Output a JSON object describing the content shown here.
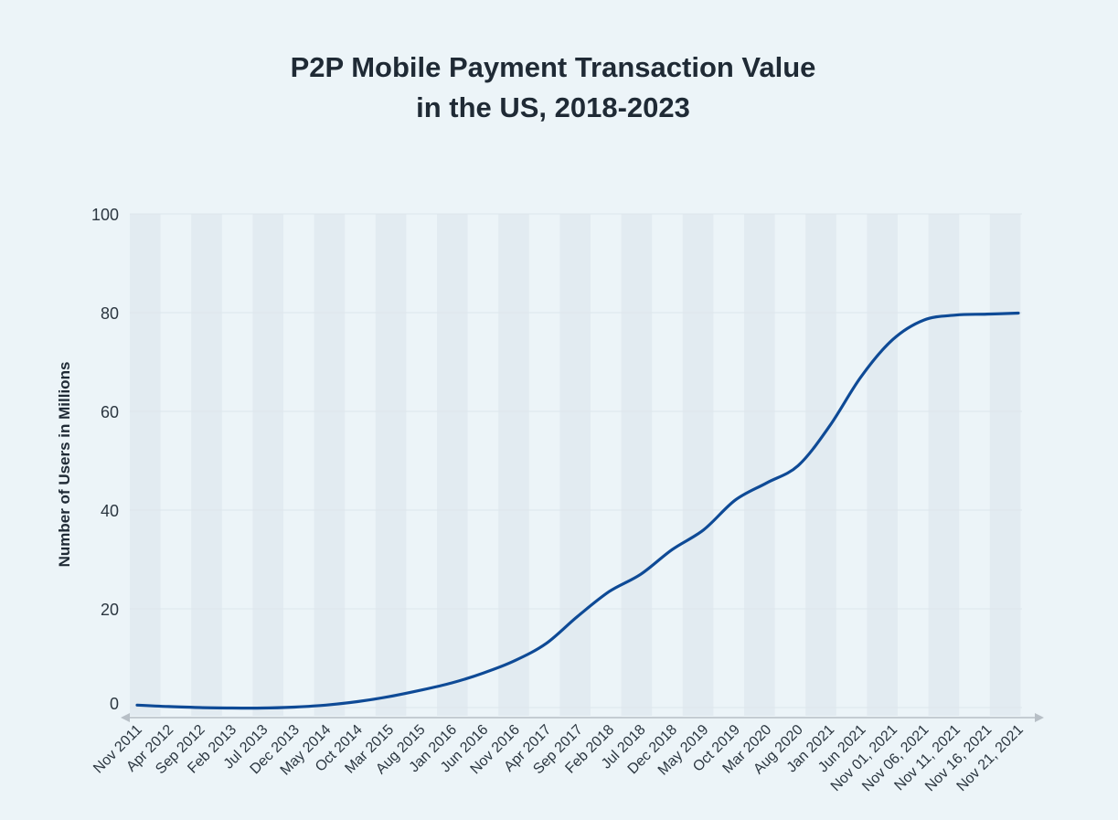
{
  "chart_data": {
    "type": "line",
    "title": [
      "P2P Mobile Payment Transaction Value",
      "in the US, 2018-2023"
    ],
    "xlabel": "",
    "ylabel": "Number of Users in Millions",
    "ylim": [
      0,
      100
    ],
    "yticks": [
      0,
      20,
      40,
      60,
      80,
      100
    ],
    "grid": true,
    "legend": "none",
    "colors": {
      "line": "#0e4a96",
      "band": "#e2ebf1",
      "grid": "#dde6ec",
      "axis": "#b7bfc6",
      "background": "#ecf4f8"
    },
    "categories": [
      "Nov 2011",
      "Apr 2012",
      "Sep 2012",
      "Feb 2013",
      "Jul 2013",
      "Dec 2013",
      "May 2014",
      "Oct 2014",
      "Mar 2015",
      "Aug 2015",
      "Jan 2016",
      "Jun 2016",
      "Nov 2016",
      "Apr 2017",
      "Sep 2017",
      "Feb 2018",
      "Jul 2018",
      "Dec 2018",
      "May 2019",
      "Oct 2019",
      "Mar 2020",
      "Aug 2020",
      "Jan 2021",
      "Jun 2021",
      "Nov 01, 2021",
      "Nov 06, 2021",
      "Nov 11, 2021",
      "Nov 16, 2021",
      "Nov 21, 2021"
    ],
    "series": [
      {
        "name": "",
        "values": [
          0.5,
          0.2,
          0.0,
          -0.1,
          -0.1,
          0.1,
          0.5,
          1.2,
          2.2,
          3.5,
          5.0,
          7.0,
          9.5,
          13.0,
          18.5,
          23.5,
          27.0,
          32.0,
          36.0,
          42.0,
          45.5,
          49.0,
          57.0,
          67.0,
          74.5,
          78.5,
          79.5,
          79.7,
          79.9
        ]
      }
    ]
  }
}
